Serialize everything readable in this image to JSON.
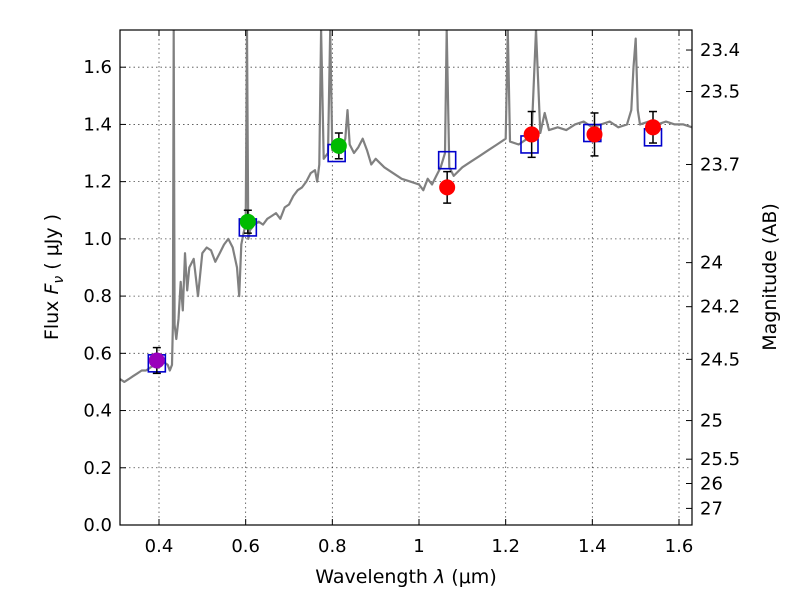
{
  "chart_data": {
    "type": "scatter",
    "xlabel_prefix": "Wavelength  ",
    "xlabel_symbol": "λ",
    "xlabel_units": " (μm)",
    "ylabel_prefix": "Flux  ",
    "ylabel_symbol": "F",
    "ylabel_sub": "ν",
    "ylabel_units": "  ( μJy )",
    "y2label": "Magnitude (AB)",
    "xlim": [
      0.31,
      1.63
    ],
    "ylim": [
      0.0,
      1.73
    ],
    "xticks": [
      {
        "value": 0.4,
        "label": "0.4"
      },
      {
        "value": 0.6,
        "label": "0.6"
      },
      {
        "value": 0.8,
        "label": "0.8"
      },
      {
        "value": 1.0,
        "label": "1"
      },
      {
        "value": 1.2,
        "label": "1.2"
      },
      {
        "value": 1.4,
        "label": "1.4"
      },
      {
        "value": 1.6,
        "label": "1.6"
      }
    ],
    "yticks": [
      {
        "value": 0.0,
        "label": "0.0"
      },
      {
        "value": 0.2,
        "label": "0.2"
      },
      {
        "value": 0.4,
        "label": "0.4"
      },
      {
        "value": 0.6,
        "label": "0.6"
      },
      {
        "value": 0.8,
        "label": "0.8"
      },
      {
        "value": 1.0,
        "label": "1.0"
      },
      {
        "value": 1.2,
        "label": "1.2"
      },
      {
        "value": 1.4,
        "label": "1.4"
      },
      {
        "value": 1.6,
        "label": "1.6"
      }
    ],
    "y2ticks": [
      {
        "flux": 1.66,
        "label": "23.4"
      },
      {
        "flux": 1.515,
        "label": "23.5"
      },
      {
        "flux": 1.26,
        "label": "23.7"
      },
      {
        "flux": 0.917,
        "label": "24"
      },
      {
        "flux": 0.763,
        "label": "24.2"
      },
      {
        "flux": 0.579,
        "label": "24.5"
      },
      {
        "flux": 0.365,
        "label": "25"
      },
      {
        "flux": 0.23,
        "label": "25.5"
      },
      {
        "flux": 0.145,
        "label": "26"
      },
      {
        "flux": 0.058,
        "label": "27"
      }
    ],
    "model_color": "#808080",
    "model_spectrum": [
      [
        0.31,
        0.51
      ],
      [
        0.32,
        0.5
      ],
      [
        0.33,
        0.51
      ],
      [
        0.34,
        0.52
      ],
      [
        0.35,
        0.53
      ],
      [
        0.36,
        0.54
      ],
      [
        0.37,
        0.54
      ],
      [
        0.38,
        0.55
      ],
      [
        0.39,
        0.56
      ],
      [
        0.4,
        0.57
      ],
      [
        0.41,
        0.57
      ],
      [
        0.42,
        0.56
      ],
      [
        0.425,
        0.54
      ],
      [
        0.43,
        0.56
      ],
      [
        0.432,
        0.7
      ],
      [
        0.434,
        1.73
      ],
      [
        0.436,
        0.7
      ],
      [
        0.44,
        0.65
      ],
      [
        0.445,
        0.72
      ],
      [
        0.45,
        0.85
      ],
      [
        0.455,
        0.75
      ],
      [
        0.46,
        0.95
      ],
      [
        0.465,
        0.82
      ],
      [
        0.47,
        0.9
      ],
      [
        0.48,
        0.93
      ],
      [
        0.49,
        0.8
      ],
      [
        0.5,
        0.95
      ],
      [
        0.51,
        0.97
      ],
      [
        0.52,
        0.96
      ],
      [
        0.53,
        0.92
      ],
      [
        0.54,
        0.95
      ],
      [
        0.55,
        0.98
      ],
      [
        0.56,
        1.0
      ],
      [
        0.57,
        0.97
      ],
      [
        0.58,
        0.9
      ],
      [
        0.585,
        0.8
      ],
      [
        0.59,
        0.98
      ],
      [
        0.595,
        1.02
      ],
      [
        0.6,
        1.05
      ],
      [
        0.603,
        1.73
      ],
      [
        0.606,
        1.0
      ],
      [
        0.61,
        1.03
      ],
      [
        0.62,
        1.05
      ],
      [
        0.63,
        1.06
      ],
      [
        0.64,
        1.05
      ],
      [
        0.65,
        1.07
      ],
      [
        0.66,
        1.08
      ],
      [
        0.67,
        1.09
      ],
      [
        0.68,
        1.07
      ],
      [
        0.69,
        1.11
      ],
      [
        0.7,
        1.12
      ],
      [
        0.71,
        1.15
      ],
      [
        0.72,
        1.17
      ],
      [
        0.73,
        1.18
      ],
      [
        0.74,
        1.2
      ],
      [
        0.75,
        1.23
      ],
      [
        0.76,
        1.24
      ],
      [
        0.765,
        1.2
      ],
      [
        0.77,
        1.26
      ],
      [
        0.774,
        1.73
      ],
      [
        0.78,
        1.28
      ],
      [
        0.79,
        1.3
      ],
      [
        0.795,
        1.73
      ],
      [
        0.8,
        1.31
      ],
      [
        0.81,
        1.33
      ],
      [
        0.82,
        1.3
      ],
      [
        0.83,
        1.35
      ],
      [
        0.835,
        1.45
      ],
      [
        0.84,
        1.33
      ],
      [
        0.85,
        1.3
      ],
      [
        0.86,
        1.32
      ],
      [
        0.87,
        1.35
      ],
      [
        0.88,
        1.31
      ],
      [
        0.89,
        1.26
      ],
      [
        0.9,
        1.28
      ],
      [
        0.92,
        1.25
      ],
      [
        0.94,
        1.23
      ],
      [
        0.96,
        1.21
      ],
      [
        0.98,
        1.2
      ],
      [
        1.0,
        1.19
      ],
      [
        1.01,
        1.17
      ],
      [
        1.02,
        1.21
      ],
      [
        1.03,
        1.19
      ],
      [
        1.04,
        1.22
      ],
      [
        1.05,
        1.25
      ],
      [
        1.06,
        1.3
      ],
      [
        1.064,
        1.73
      ],
      [
        1.07,
        1.25
      ],
      [
        1.08,
        1.22
      ],
      [
        1.1,
        1.25
      ],
      [
        1.12,
        1.27
      ],
      [
        1.14,
        1.29
      ],
      [
        1.16,
        1.31
      ],
      [
        1.18,
        1.33
      ],
      [
        1.2,
        1.35
      ],
      [
        1.205,
        1.73
      ],
      [
        1.21,
        1.34
      ],
      [
        1.23,
        1.33
      ],
      [
        1.25,
        1.35
      ],
      [
        1.26,
        1.37
      ],
      [
        1.27,
        1.73
      ],
      [
        1.28,
        1.37
      ],
      [
        1.29,
        1.44
      ],
      [
        1.3,
        1.38
      ],
      [
        1.32,
        1.39
      ],
      [
        1.34,
        1.38
      ],
      [
        1.36,
        1.4
      ],
      [
        1.38,
        1.41
      ],
      [
        1.4,
        1.39
      ],
      [
        1.42,
        1.4
      ],
      [
        1.44,
        1.41
      ],
      [
        1.46,
        1.39
      ],
      [
        1.48,
        1.4
      ],
      [
        1.49,
        1.45
      ],
      [
        1.495,
        1.6
      ],
      [
        1.5,
        1.7
      ],
      [
        1.505,
        1.45
      ],
      [
        1.51,
        1.4
      ],
      [
        1.53,
        1.41
      ],
      [
        1.55,
        1.4
      ],
      [
        1.57,
        1.41
      ],
      [
        1.59,
        1.4
      ],
      [
        1.61,
        1.4
      ],
      [
        1.63,
        1.39
      ]
    ],
    "model_points": [
      {
        "x": 0.395,
        "y": 0.565
      },
      {
        "x": 0.605,
        "y": 1.04
      },
      {
        "x": 0.81,
        "y": 1.3
      },
      {
        "x": 1.065,
        "y": 1.275
      },
      {
        "x": 1.255,
        "y": 1.33
      },
      {
        "x": 1.4,
        "y": 1.37
      },
      {
        "x": 1.54,
        "y": 1.355
      }
    ],
    "model_point_color": "#0000cc",
    "observed_points": [
      {
        "x": 0.395,
        "y": 0.575,
        "err": 0.045,
        "color": "#9900bb"
      },
      {
        "x": 0.605,
        "y": 1.06,
        "err": 0.04,
        "color": "#00bb00"
      },
      {
        "x": 0.815,
        "y": 1.325,
        "err": 0.045,
        "color": "#00bb00"
      },
      {
        "x": 1.065,
        "y": 1.18,
        "err": 0.055,
        "color": "#ff0000"
      },
      {
        "x": 1.26,
        "y": 1.365,
        "err": 0.08,
        "color": "#ff0000"
      },
      {
        "x": 1.405,
        "y": 1.365,
        "err": 0.075,
        "color": "#ff0000"
      },
      {
        "x": 1.54,
        "y": 1.39,
        "err": 0.055,
        "color": "#ff0000"
      }
    ]
  }
}
